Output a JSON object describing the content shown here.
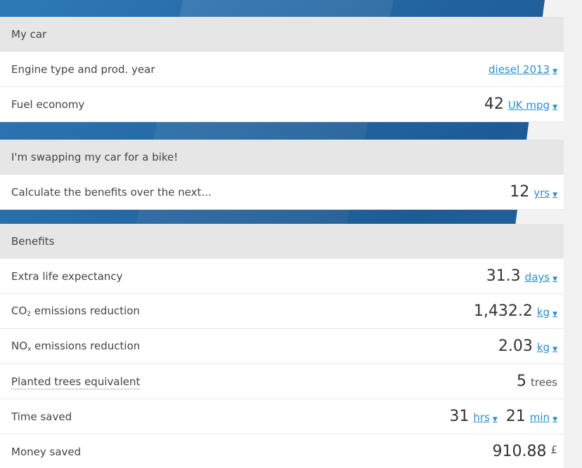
{
  "my_car": {
    "header": "My car",
    "engine_label": "Engine type and prod. year",
    "engine_value": "diesel 2013",
    "fuel_label": "Fuel economy",
    "fuel_value": "42",
    "fuel_unit": "UK mpg"
  },
  "swap": {
    "header": "I'm swapping my car for a bike!",
    "period_label": "Calculate the benefits over the next...",
    "period_value": "12",
    "period_unit": "yrs"
  },
  "benefits": {
    "header": "Benefits",
    "life": {
      "label": "Extra life expectancy",
      "value": "31.3",
      "unit": "days"
    },
    "co2": {
      "label_prefix": "CO",
      "label_sub": "2",
      "label_suffix": " emissions reduction",
      "value": "1,432.2",
      "unit": "kg"
    },
    "nox": {
      "label_prefix": "NO",
      "label_sub": "x",
      "label_suffix": " emissions reduction",
      "value": "2.03",
      "unit": "kg"
    },
    "trees": {
      "label": "Planted trees equivalent",
      "value": "5",
      "unit": "trees"
    },
    "time": {
      "label": "Time saved",
      "hours_value": "31",
      "hours_unit": "hrs",
      "min_value": "21",
      "min_unit": "min"
    },
    "money": {
      "label": "Money saved",
      "value": "910.88",
      "unit": "£"
    }
  },
  "caret": "▼",
  "colors": {
    "link": "#2a8fd1",
    "header_bg": "#e6e6e6",
    "banner": "#256aa6"
  }
}
